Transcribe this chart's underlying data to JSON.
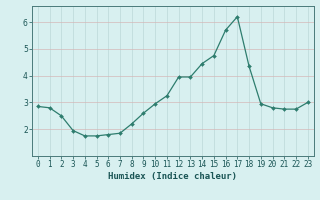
{
  "x": [
    0,
    1,
    2,
    3,
    4,
    5,
    6,
    7,
    8,
    9,
    10,
    11,
    12,
    13,
    14,
    15,
    16,
    17,
    18,
    19,
    20,
    21,
    22,
    23
  ],
  "y": [
    2.85,
    2.8,
    2.5,
    1.95,
    1.75,
    1.75,
    1.8,
    1.85,
    2.2,
    2.6,
    2.95,
    3.25,
    3.95,
    3.95,
    4.45,
    4.75,
    5.7,
    6.2,
    4.35,
    2.95,
    2.8,
    2.75,
    2.75,
    3.0
  ],
  "line_color": "#2e7d6e",
  "marker": "D",
  "marker_size": 2.0,
  "bg_color": "#d8f0f0",
  "grid_color": "#bcd8d8",
  "grid_red": "#e8c8c8",
  "xlabel": "Humidex (Indice chaleur)",
  "xlim": [
    -0.5,
    23.5
  ],
  "ylim": [
    1.0,
    6.6
  ],
  "yticks": [
    2,
    3,
    4,
    5,
    6
  ],
  "xtick_labels": [
    "0",
    "1",
    "2",
    "3",
    "4",
    "5",
    "6",
    "7",
    "8",
    "9",
    "10",
    "11",
    "12",
    "13",
    "14",
    "15",
    "16",
    "17",
    "18",
    "19",
    "20",
    "21",
    "22",
    "23"
  ],
  "xlabel_fontsize": 6.5,
  "tick_fontsize": 5.5,
  "label_color": "#1a5555"
}
